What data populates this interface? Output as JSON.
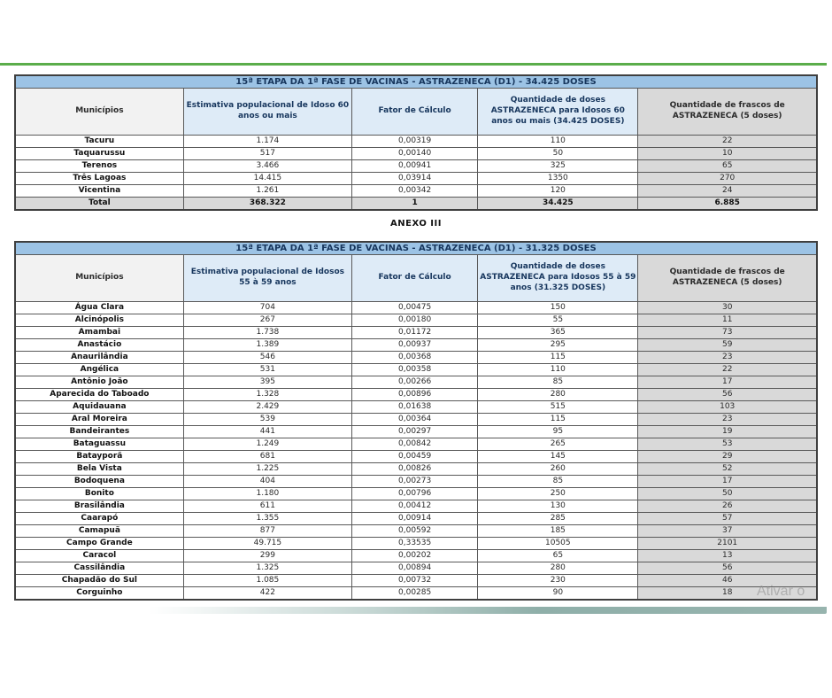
{
  "page": {
    "anexo_label": "ANEXO III",
    "watermark_text": "Ativar o",
    "colors": {
      "accent_green": "#5BAD4A",
      "title_bar_blue": "#9CC3E5",
      "header_blue": "#DEEBF7",
      "header_gray": "#D9D9D9",
      "header_light_gray": "#F2F2F2",
      "title_text_navy": "#17365D",
      "teal_band": "#8FAFA9"
    }
  },
  "tables": [
    {
      "id": "etapa15-idosos-60-mais",
      "title": "15ª ETAPA DA 1ª FASE DE VACINAS - ASTRAZENECA (D1) - 34.425 DOSES",
      "columns": [
        "Municípios",
        "Estimativa populacional de Idoso 60 anos ou mais",
        "Fator de Cálculo",
        "Quantidade de doses ASTRAZENECA para Idosos 60 anos ou mais (34.425 DOSES)",
        "Quantidade de frascos de ASTRAZENECA (5 doses)"
      ],
      "rows": [
        [
          "Tacuru",
          "1.174",
          "0,00319",
          "110",
          "22"
        ],
        [
          "Taquarussu",
          "517",
          "0,00140",
          "50",
          "10"
        ],
        [
          "Terenos",
          "3.466",
          "0,00941",
          "325",
          "65"
        ],
        [
          "Três Lagoas",
          "14.415",
          "0,03914",
          "1350",
          "270"
        ],
        [
          "Vicentina",
          "1.261",
          "0,00342",
          "120",
          "24"
        ]
      ],
      "total_row": [
        "Total",
        "368.322",
        "1",
        "34.425",
        "6.885"
      ]
    },
    {
      "id": "etapa15-idosos-55-59",
      "title": "15ª ETAPA DA 1ª FASE DE VACINAS - ASTRAZENECA (D1) - 31.325 DOSES",
      "columns": [
        "Municípios",
        "Estimativa populacional de Idosos 55 à 59 anos",
        "Fator de Cálculo",
        "Quantidade de doses ASTRAZENECA para Idosos 55 à 59 anos  (31.325 DOSES)",
        "Quantidade de frascos de ASTRAZENECA (5 doses)"
      ],
      "rows": [
        [
          "Água Clara",
          "704",
          "0,00475",
          "150",
          "30"
        ],
        [
          "Alcinópolis",
          "267",
          "0,00180",
          "55",
          "11"
        ],
        [
          "Amambai",
          "1.738",
          "0,01172",
          "365",
          "73"
        ],
        [
          "Anastácio",
          "1.389",
          "0,00937",
          "295",
          "59"
        ],
        [
          "Anaurilândia",
          "546",
          "0,00368",
          "115",
          "23"
        ],
        [
          "Angélica",
          "531",
          "0,00358",
          "110",
          "22"
        ],
        [
          "Antônio João",
          "395",
          "0,00266",
          "85",
          "17"
        ],
        [
          "Aparecida do Taboado",
          "1.328",
          "0,00896",
          "280",
          "56"
        ],
        [
          "Aquidauana",
          "2.429",
          "0,01638",
          "515",
          "103"
        ],
        [
          "Aral Moreira",
          "539",
          "0,00364",
          "115",
          "23"
        ],
        [
          "Bandeirantes",
          "441",
          "0,00297",
          "95",
          "19"
        ],
        [
          "Bataguassu",
          "1.249",
          "0,00842",
          "265",
          "53"
        ],
        [
          "Batayporã",
          "681",
          "0,00459",
          "145",
          "29"
        ],
        [
          "Bela Vista",
          "1.225",
          "0,00826",
          "260",
          "52"
        ],
        [
          "Bodoquena",
          "404",
          "0,00273",
          "85",
          "17"
        ],
        [
          "Bonito",
          "1.180",
          "0,00796",
          "250",
          "50"
        ],
        [
          "Brasilândia",
          "611",
          "0,00412",
          "130",
          "26"
        ],
        [
          "Caarapó",
          "1.355",
          "0,00914",
          "285",
          "57"
        ],
        [
          "Camapuã",
          "877",
          "0,00592",
          "185",
          "37"
        ],
        [
          "Campo Grande",
          "49.715",
          "0,33535",
          "10505",
          "2101"
        ],
        [
          "Caracol",
          "299",
          "0,00202",
          "65",
          "13"
        ],
        [
          "Cassilândia",
          "1.325",
          "0,00894",
          "280",
          "56"
        ],
        [
          "Chapadão do Sul",
          "1.085",
          "0,00732",
          "230",
          "46"
        ],
        [
          "Corguinho",
          "422",
          "0,00285",
          "90",
          "18"
        ]
      ],
      "total_row": null
    }
  ]
}
